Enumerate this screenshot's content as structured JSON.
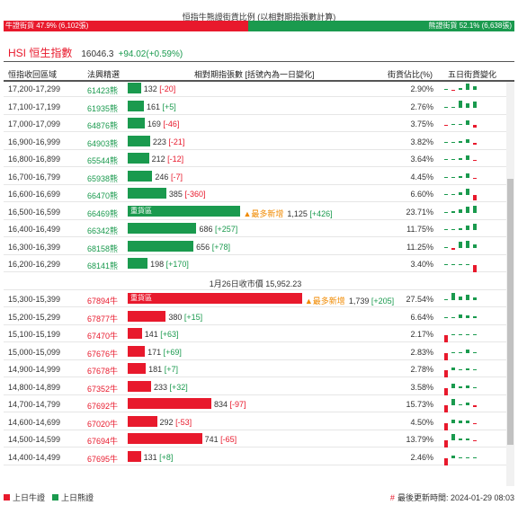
{
  "ratio": {
    "title": "恒指牛熊證街貨比例 (以相對期指張數計算)",
    "bull_label": "牛證街貨 47.9% (6,102張)",
    "bear_label": "熊證街貨 52.1% (6,638張)",
    "bull_fraction": 0.479,
    "bull_color": "#e8192c",
    "bear_color": "#1a9a4e"
  },
  "hsi": {
    "label": "HSI 恒生指數",
    "value": "16046.3",
    "change": "+94.02(+0.59%)"
  },
  "table": {
    "headers": {
      "range": "恒指收回區域",
      "code": "法興精選",
      "contracts": "相對期指張數 [括號內為一日變化]",
      "pct": "街貨佔比(%)",
      "five_day": "五日街貨變化"
    },
    "bear_rows": [
      {
        "range": "17,200-17,299",
        "code": "61423熊",
        "contracts": "132",
        "delta": "[-20]",
        "dir": "down",
        "pct": "2.90%",
        "spark": [
          0,
          -1,
          2,
          7,
          4
        ]
      },
      {
        "range": "17,100-17,199",
        "code": "61935熊",
        "contracts": "161",
        "delta": "[+5]",
        "dir": "up",
        "pct": "2.76%",
        "spark": [
          0,
          0,
          8,
          5,
          7
        ]
      },
      {
        "range": "17,000-17,099",
        "code": "64876熊",
        "contracts": "169",
        "delta": "[-46]",
        "dir": "down",
        "pct": "3.75%",
        "spark": [
          -1,
          0,
          1,
          5,
          -3
        ]
      },
      {
        "range": "16,900-16,999",
        "code": "64903熊",
        "contracts": "223",
        "delta": "[-21]",
        "dir": "down",
        "pct": "3.82%",
        "spark": [
          0,
          1,
          2,
          4,
          -2
        ]
      },
      {
        "range": "16,800-16,899",
        "code": "65544熊",
        "contracts": "212",
        "delta": "[-12]",
        "dir": "down",
        "pct": "3.64%",
        "spark": [
          0,
          1,
          2,
          5,
          -1
        ]
      },
      {
        "range": "16,700-16,799",
        "code": "65938熊",
        "contracts": "246",
        "delta": "[-7]",
        "dir": "down",
        "pct": "4.45%",
        "spark": [
          0,
          1,
          2,
          5,
          -1
        ]
      },
      {
        "range": "16,600-16,699",
        "code": "66470熊",
        "contracts": "385",
        "delta": "[-360]",
        "dir": "down",
        "pct": "6.60%",
        "spark": [
          0,
          1,
          3,
          7,
          -6
        ]
      },
      {
        "range": "16,500-16,599",
        "code": "66469熊",
        "contracts": "1,125",
        "delta": "[+426]",
        "dir": "up",
        "pct": "23.71%",
        "tag": "重貨區",
        "most": "▲最多新增",
        "spark": [
          0,
          2,
          4,
          7,
          8
        ]
      },
      {
        "range": "16,400-16,499",
        "code": "66342熊",
        "contracts": "686",
        "delta": "[+257]",
        "dir": "up",
        "pct": "11.75%",
        "spark": [
          0,
          1,
          2,
          5,
          7
        ]
      },
      {
        "range": "16,300-16,399",
        "code": "68158熊",
        "contracts": "656",
        "delta": "[+78]",
        "dir": "up",
        "pct": "11.25%",
        "spark": [
          0,
          -2,
          7,
          8,
          4
        ]
      },
      {
        "range": "16,200-16,299",
        "code": "68141熊",
        "contracts": "198",
        "delta": "[+170]",
        "dir": "up",
        "pct": "3.40%",
        "spark": [
          0,
          0,
          1,
          1,
          -8
        ]
      }
    ],
    "separator": "1月26日收市價 15,952.23",
    "bull_rows": [
      {
        "range": "15,300-15,399",
        "code": "67894牛",
        "contracts": "1,739",
        "delta": "[+205]",
        "dir": "up",
        "pct": "27.54%",
        "tag": "重貨區",
        "most": "▲最多新增",
        "spark": [
          0,
          8,
          4,
          6,
          3
        ]
      },
      {
        "range": "15,200-15,299",
        "code": "67877牛",
        "contracts": "380",
        "delta": "[+15]",
        "dir": "up",
        "pct": "6.64%",
        "spark": [
          0,
          0,
          4,
          3,
          2
        ]
      },
      {
        "range": "15,100-15,199",
        "code": "67470牛",
        "contracts": "141",
        "delta": "[+63]",
        "dir": "up",
        "pct": "2.17%",
        "spark": [
          -8,
          0,
          1,
          1,
          1
        ]
      },
      {
        "range": "15,000-15,099",
        "code": "67676牛",
        "contracts": "171",
        "delta": "[+69]",
        "dir": "up",
        "pct": "2.83%",
        "spark": [
          -8,
          1,
          1,
          4,
          1
        ]
      },
      {
        "range": "14,900-14,999",
        "code": "67678牛",
        "contracts": "181",
        "delta": "[+7]",
        "dir": "up",
        "pct": "2.78%",
        "spark": [
          -8,
          3,
          1,
          2,
          1
        ]
      },
      {
        "range": "14,800-14,899",
        "code": "67352牛",
        "contracts": "233",
        "delta": "[+32]",
        "dir": "up",
        "pct": "3.58%",
        "spark": [
          -8,
          5,
          2,
          3,
          1
        ]
      },
      {
        "range": "14,700-14,799",
        "code": "67692牛",
        "contracts": "834",
        "delta": "[-97]",
        "dir": "down",
        "pct": "15.73%",
        "spark": [
          -8,
          7,
          1,
          3,
          -2
        ]
      },
      {
        "range": "14,600-14,699",
        "code": "67020牛",
        "contracts": "292",
        "delta": "[-53]",
        "dir": "down",
        "pct": "4.50%",
        "spark": [
          -8,
          4,
          3,
          3,
          -1
        ]
      },
      {
        "range": "14,500-14,599",
        "code": "67694牛",
        "contracts": "741",
        "delta": "[-65]",
        "dir": "down",
        "pct": "13.79%",
        "spark": [
          -8,
          7,
          2,
          2,
          -1
        ]
      },
      {
        "range": "14,400-14,499",
        "code": "67695牛",
        "contracts": "131",
        "delta": "[+8]",
        "dir": "up",
        "pct": "2.46%",
        "spark": [
          -8,
          3,
          1,
          0,
          1
        ]
      }
    ]
  },
  "footer": {
    "legend_bull": "上日牛證",
    "legend_bear": "上日熊證",
    "hash": "#",
    "update": "最後更新時間: 2024-01-29 08:03"
  }
}
